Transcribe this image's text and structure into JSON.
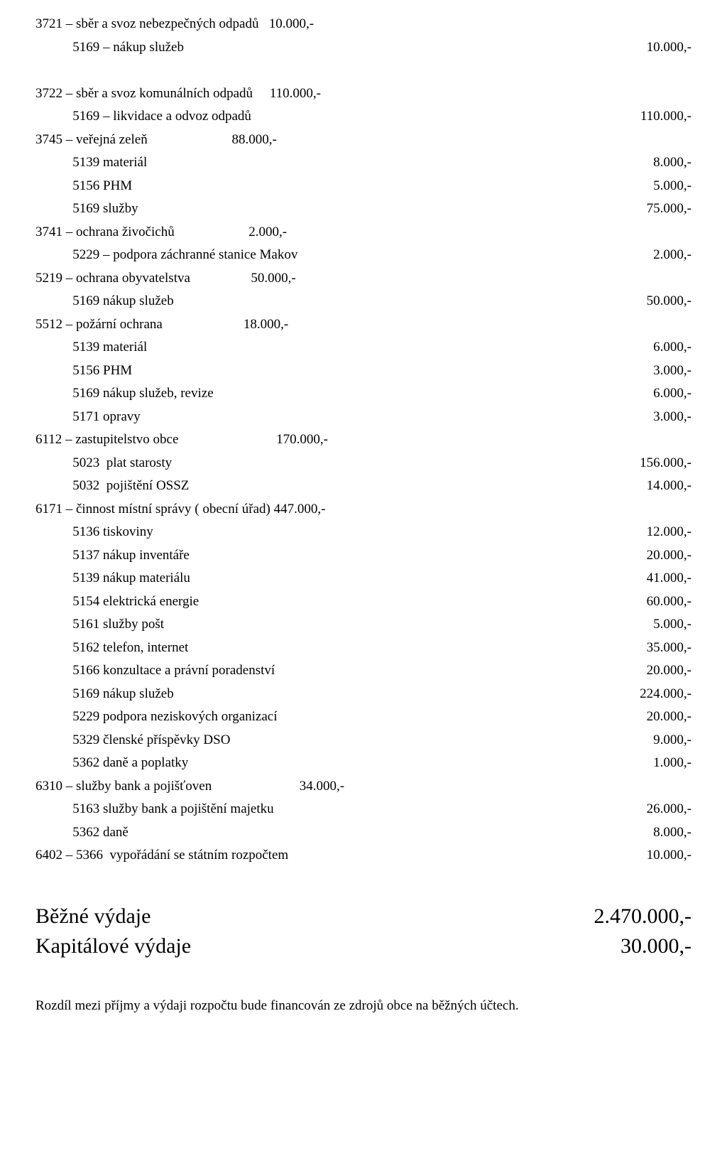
{
  "lines": [
    {
      "left": "3721 – sběr a svoz nebezpečných odpadů   10.000,-",
      "right": ""
    },
    {
      "left": "           5169 – nákup služeb",
      "right": "10.000,-"
    },
    {
      "left": " ",
      "right": ""
    },
    {
      "left": "3722 – sběr a svoz komunálních odpadů     110.000,-",
      "right": ""
    },
    {
      "left": "           5169 – likvidace a odvoz odpadů",
      "right": "110.000,-"
    },
    {
      "left": "3745 – veřejná zeleň                         88.000,-",
      "right": ""
    },
    {
      "left": "           5139 materiál",
      "right": "8.000,-"
    },
    {
      "left": "           5156 PHM",
      "right": "5.000,-"
    },
    {
      "left": "           5169 služby",
      "right": "75.000,-"
    },
    {
      "left": "3741 – ochrana živočichů                      2.000,-",
      "right": ""
    },
    {
      "left": "           5229 – podpora záchranné stanice Makov",
      "right": "2.000,-"
    },
    {
      "left": "5219 – ochrana obyvatelstva                  50.000,-",
      "right": ""
    },
    {
      "left": "           5169 nákup služeb",
      "right": "50.000,-"
    },
    {
      "left": "5512 – požární ochrana                        18.000,-",
      "right": ""
    },
    {
      "left": "           5139 materiál",
      "right": "6.000,-"
    },
    {
      "left": "           5156 PHM",
      "right": "3.000,-"
    },
    {
      "left": "           5169 nákup služeb, revize",
      "right": "6.000,-"
    },
    {
      "left": "           5171 opravy",
      "right": "3.000,-"
    },
    {
      "left": "6112 – zastupitelstvo obce                             170.000,-",
      "right": ""
    },
    {
      "left": "           5023  plat starosty",
      "right": "156.000,-"
    },
    {
      "left": "           5032  pojištění OSSZ",
      "right": "14.000,-"
    },
    {
      "left": "6171 – činnost místní správy ( obecní úřad) 447.000,-",
      "right": ""
    },
    {
      "left": "           5136 tiskoviny",
      "right": "12.000,-"
    },
    {
      "left": "           5137 nákup inventáře",
      "right": "20.000,-"
    },
    {
      "left": "           5139 nákup materiálu",
      "right": "41.000,-"
    },
    {
      "left": "           5154 elektrická energie",
      "right": "60.000,-"
    },
    {
      "left": "           5161 služby pošt",
      "right": "5.000,-"
    },
    {
      "left": "           5162 telefon, internet",
      "right": "35.000,-"
    },
    {
      "left": "           5166 konzultace a právní poradenství",
      "right": "20.000,-"
    },
    {
      "left": "           5169 nákup služeb",
      "right": "224.000,-"
    },
    {
      "left": "           5229 podpora neziskových organizací",
      "right": "20.000,-"
    },
    {
      "left": "           5329 členské příspěvky DSO",
      "right": "9.000,-"
    },
    {
      "left": "           5362 daně a poplatky",
      "right": "1.000,-"
    },
    {
      "left": "6310 – služby bank a pojišťoven                          34.000,-",
      "right": ""
    },
    {
      "left": "           5163 služby bank a pojištění majetku",
      "right": "26.000,-"
    },
    {
      "left": "           5362 daně",
      "right": "8.000,-"
    },
    {
      "left": "6402 – 5366  vypořádání se státním rozpočtem",
      "right": "10.000,-"
    }
  ],
  "totals": [
    {
      "left": "Běžné výdaje",
      "right": "2.470.000,-"
    },
    {
      "left": "Kapitálové výdaje",
      "right": "30.000,-"
    }
  ],
  "footnote": "Rozdíl mezi příjmy a výdaji rozpočtu bude financován ze zdrojů obce na běžných účtech."
}
